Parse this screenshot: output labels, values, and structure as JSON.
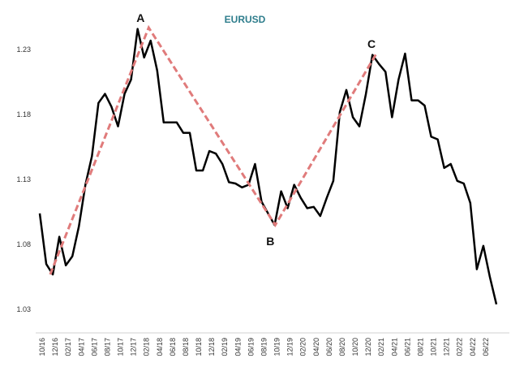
{
  "chart_data": {
    "type": "line",
    "title": "EURUSD",
    "categories": [
      "10/16",
      null,
      "12/16",
      null,
      "02/17",
      null,
      "04/17",
      null,
      "06/17",
      null,
      "08/17",
      null,
      "10/17",
      null,
      "12/17",
      null,
      "02/18",
      null,
      "04/18",
      null,
      "06/18",
      null,
      "08/18",
      null,
      "10/18",
      null,
      "12/18",
      null,
      "02/19",
      null,
      "04/19",
      null,
      "06/19",
      null,
      "08/19",
      null,
      "10/19",
      null,
      "12/19",
      null,
      "02/20",
      null,
      "04/20",
      null,
      "06/20",
      null,
      "08/20",
      null,
      "10/20",
      null,
      "12/20",
      null,
      "02/21",
      null,
      "04/21",
      null,
      "06/21",
      null,
      "08/21",
      null,
      "10/21",
      null,
      "12/21",
      null,
      "02/22",
      null,
      "04/22",
      null,
      "06/22",
      null,
      null
    ],
    "series": [
      {
        "color": "#000000",
        "values": [
          1.104,
          1.065,
          1.057,
          1.086,
          1.064,
          1.071,
          1.094,
          1.126,
          1.148,
          1.189,
          1.196,
          1.186,
          1.171,
          1.196,
          1.207,
          1.246,
          1.224,
          1.237,
          1.214,
          1.174,
          1.174,
          1.174,
          1.166,
          1.166,
          1.137,
          1.137,
          1.152,
          1.15,
          1.142,
          1.128,
          1.127,
          1.124,
          1.126,
          1.142,
          1.113,
          1.104,
          1.095,
          1.121,
          1.108,
          1.126,
          1.116,
          1.108,
          1.109,
          1.102,
          1.116,
          1.129,
          1.182,
          1.199,
          1.178,
          1.171,
          1.196,
          1.226,
          1.219,
          1.213,
          1.178,
          1.207,
          1.227,
          1.191,
          1.191,
          1.187,
          1.163,
          1.161,
          1.139,
          1.142,
          1.129,
          1.127,
          1.112,
          1.061,
          1.079,
          1.055,
          1.034
        ]
      }
    ],
    "pattern": {
      "color": "#e07b7b",
      "x": [
        1.6,
        16.7,
        36.1,
        51.6
      ],
      "values": [
        1.057,
        1.247,
        1.095,
        1.227
      ],
      "labels": [
        null,
        "A",
        "B",
        "C"
      ]
    },
    "ylim": [
      1.012,
      1.257
    ],
    "yticks": [
      1.03,
      1.08,
      1.13,
      1.18,
      1.23
    ],
    "grid": false
  }
}
